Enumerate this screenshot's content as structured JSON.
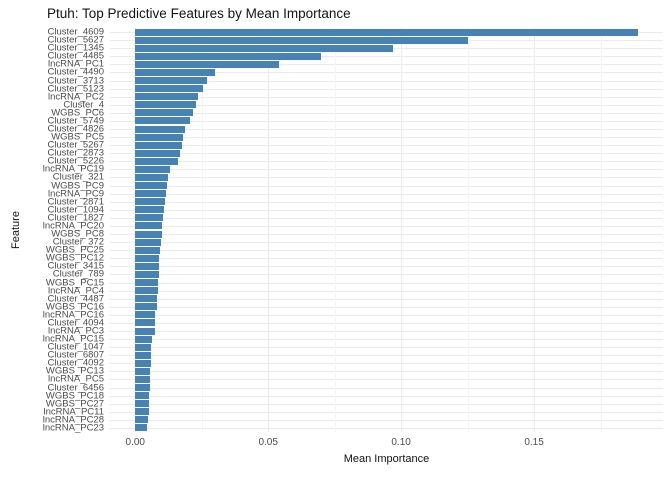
{
  "chart_data": {
    "type": "bar",
    "orientation": "horizontal",
    "title": "Ptuh: Top Predictive Features by Mean Importance",
    "xlabel": "Mean Importance",
    "ylabel": "Feature",
    "categories": [
      "Cluster_4609",
      "Cluster_5627",
      "Cluster_1345",
      "Cluster_4485",
      "lncRNA_PC1",
      "Cluster_4490",
      "Cluster_3713",
      "Cluster_5123",
      "lncRNA_PC2",
      "Cluster_4",
      "WGBS_PC6",
      "Cluster_5749",
      "Cluster_4826",
      "WGBS_PC5",
      "Cluster_5267",
      "Cluster_2873",
      "Cluster_5226",
      "lncRNA_PC19",
      "Cluster_321",
      "WGBS_PC9",
      "lncRNA_PC9",
      "Cluster_2871",
      "Cluster_1094",
      "Cluster_1827",
      "lncRNA_PC20",
      "WGBS_PC8",
      "Cluster_372",
      "WGBS_PC25",
      "WGBS_PC12",
      "Cluster_3415",
      "Cluster_789",
      "WGBS_PC15",
      "lncRNA_PC4",
      "Cluster_4487",
      "WGBS_PC16",
      "lncRNA_PC16",
      "Cluster_4094",
      "lncRNA_PC3",
      "lncRNA_PC15",
      "Cluster_1047",
      "Cluster_6807",
      "Cluster_4092",
      "WGBS_PC13",
      "lncRNA_PC5",
      "Cluster_6456",
      "WGBS_PC18",
      "WGBS_PC27",
      "lncRNA_PC11",
      "lncRNA_PC28",
      "lncRNA_PC23"
    ],
    "values": [
      0.189,
      0.125,
      0.097,
      0.07,
      0.054,
      0.03,
      0.027,
      0.0255,
      0.0235,
      0.0228,
      0.0218,
      0.0205,
      0.0188,
      0.018,
      0.0174,
      0.0168,
      0.0161,
      0.013,
      0.0125,
      0.012,
      0.0114,
      0.0111,
      0.0108,
      0.0105,
      0.0102,
      0.01,
      0.0097,
      0.0094,
      0.0091,
      0.0089,
      0.0088,
      0.0086,
      0.0084,
      0.0082,
      0.0081,
      0.0076,
      0.0074,
      0.0073,
      0.0062,
      0.006,
      0.0059,
      0.0058,
      0.0056,
      0.0055,
      0.0054,
      0.0052,
      0.0051,
      0.005,
      0.0049,
      0.0045
    ],
    "x_tick_values": [
      0,
      0.05,
      0.1,
      0.15
    ],
    "x_tick_labels": [
      "0.00",
      "0.05",
      "0.10",
      "0.15"
    ],
    "x_minor_tick_values": [
      0.025,
      0.075,
      0.125,
      0.175
    ],
    "xlim": [
      -0.0095,
      0.1985
    ],
    "grid": true,
    "legend": "none",
    "colors": {
      "bar": "#4682B4",
      "grid_major": "#EBEBEB",
      "grid_minor": "#F4F4F4",
      "tick_text": "#4D4D4D",
      "title_text": "#141414",
      "background": "#FFFFFF"
    }
  }
}
